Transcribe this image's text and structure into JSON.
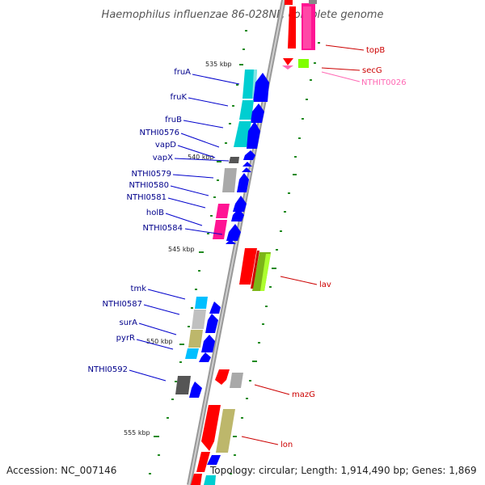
{
  "title": "Haemophilus influenzae 86-028NP, complete genome",
  "footer": {
    "accession": "Accession: NC_007146",
    "topology": "Topology: circular; Length: 1,914,490 bp; Genes: 1,869"
  },
  "colors": {
    "left_label": "#00008b",
    "right_label": "#cc0000",
    "pink_label": "#ff69b4",
    "backbone": "#888888",
    "tick": "#228b22"
  },
  "kbp_labels": {
    "k535": "535 kbp",
    "k540": "540 kbp",
    "k545": "545 kbp",
    "k550": "550 kbp",
    "k555": "555 kbp"
  },
  "left_genes": {
    "fruA": "fruA",
    "fruK": "fruK",
    "fruB": "fruB",
    "NTHI0576": "NTHI0576",
    "vapD": "vapD",
    "vapX": "vapX",
    "NTHI0579": "NTHI0579",
    "NTHI0580": "NTHI0580",
    "NTHI0581": "NTHI0581",
    "holB": "holB",
    "NTHI0584": "NTHI0584",
    "tmk": "tmk",
    "NTHI0587": "NTHI0587",
    "surA": "surA",
    "pyrR": "pyrR",
    "NTHI0592": "NTHI0592"
  },
  "right_genes": {
    "topB": "topB",
    "secG": "secG",
    "NTHIT0026": "NTHIT0026",
    "lav": "lav",
    "mazG": "mazG",
    "lon": "lon"
  }
}
